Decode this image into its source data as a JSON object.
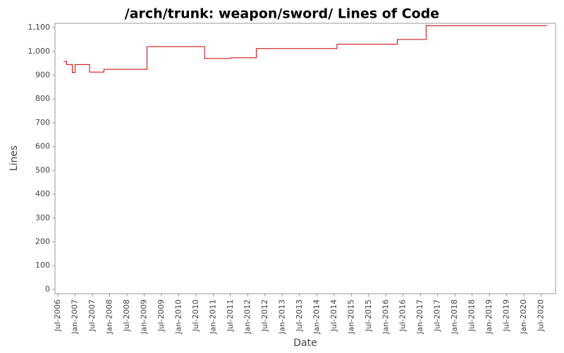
{
  "chart_data": {
    "type": "step",
    "title": "/arch/trunk: weapon/sword/ Lines of Code",
    "x_label": "Date",
    "y_label": "Lines",
    "series": [
      {
        "name": "Lines",
        "color": "#cc0000",
        "x": [
          "2006-09",
          "2006-10",
          "2006-12",
          "2007-01",
          "2007-06",
          "2007-11",
          "2009-02",
          "2010-10",
          "2011-07",
          "2012-04",
          "2014-08",
          "2016-05",
          "2017-03",
          "2020-09"
        ],
        "values": [
          958,
          945,
          912,
          945,
          913,
          925,
          1020,
          970,
          973,
          1012,
          1030,
          1050,
          1108,
          1108
        ]
      }
    ],
    "xlim": [
      "2006-06",
      "2020-12"
    ],
    "xticks": [
      {
        "value": "2006-07",
        "label": "Jul-2006"
      },
      {
        "value": "2007-01",
        "label": "Jan-2007"
      },
      {
        "value": "2007-07",
        "label": "Jul-2007"
      },
      {
        "value": "2008-01",
        "label": "Jan-2008"
      },
      {
        "value": "2008-07",
        "label": "Jul-2008"
      },
      {
        "value": "2009-01",
        "label": "Jan-2009"
      },
      {
        "value": "2009-07",
        "label": "Jul-2009"
      },
      {
        "value": "2010-01",
        "label": "Jan-2010"
      },
      {
        "value": "2010-07",
        "label": "Jul-2010"
      },
      {
        "value": "2011-01",
        "label": "Jan-2011"
      },
      {
        "value": "2011-07",
        "label": "Jul-2011"
      },
      {
        "value": "2012-01",
        "label": "Jan-2012"
      },
      {
        "value": "2012-07",
        "label": "Jul-2012"
      },
      {
        "value": "2013-01",
        "label": "Jan-2013"
      },
      {
        "value": "2013-07",
        "label": "Jul-2013"
      },
      {
        "value": "2014-01",
        "label": "Jan-2014"
      },
      {
        "value": "2014-07",
        "label": "Jul-2014"
      },
      {
        "value": "2015-01",
        "label": "Jan-2015"
      },
      {
        "value": "2015-07",
        "label": "Jul-2015"
      },
      {
        "value": "2016-01",
        "label": "Jan-2016"
      },
      {
        "value": "2016-07",
        "label": "Jul-2016"
      },
      {
        "value": "2017-01",
        "label": "Jan-2017"
      },
      {
        "value": "2017-07",
        "label": "Jul-2017"
      },
      {
        "value": "2018-01",
        "label": "Jan-2018"
      },
      {
        "value": "2018-07",
        "label": "Jul-2018"
      },
      {
        "value": "2019-01",
        "label": "Jan-2019"
      },
      {
        "value": "2019-07",
        "label": "Jul-2019"
      },
      {
        "value": "2020-01",
        "label": "Jan-2020"
      },
      {
        "value": "2020-07",
        "label": "Jul-2020"
      }
    ],
    "ylim": [
      -18,
      1118
    ],
    "yticks": [
      0,
      100,
      200,
      300,
      400,
      500,
      600,
      700,
      800,
      900,
      {
        "value": 1000,
        "label": "1,000"
      },
      {
        "value": 1100,
        "label": "1,100"
      }
    ],
    "grid": false
  }
}
